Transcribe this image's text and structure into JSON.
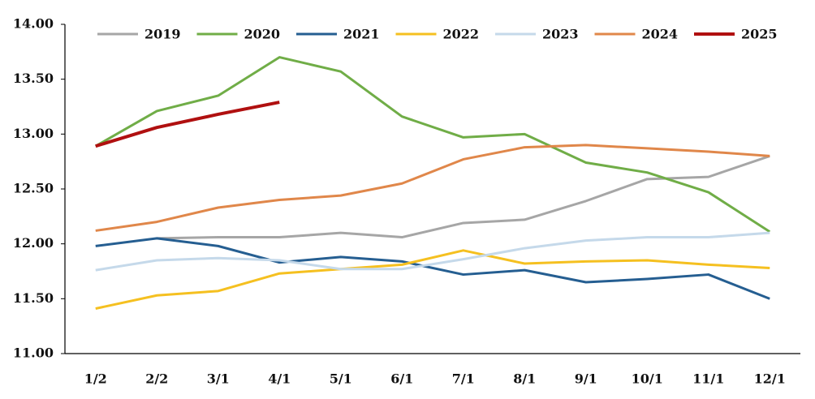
{
  "chart_data": {
    "type": "line",
    "categories": [
      "1/2",
      "2/2",
      "3/1",
      "4/1",
      "5/1",
      "6/1",
      "7/1",
      "8/1",
      "9/1",
      "10/1",
      "11/1",
      "12/1"
    ],
    "series": [
      {
        "name": "2019",
        "color": "#a6a6a6",
        "values": [
          null,
          12.05,
          12.06,
          12.06,
          12.1,
          12.06,
          12.19,
          12.22,
          12.39,
          12.59,
          12.61,
          12.8
        ]
      },
      {
        "name": "2020",
        "color": "#70ad47",
        "values": [
          12.89,
          13.21,
          13.35,
          13.7,
          13.57,
          13.16,
          12.97,
          13.0,
          12.74,
          12.65,
          12.47,
          12.11
        ]
      },
      {
        "name": "2021",
        "color": "#255e91",
        "values": [
          11.98,
          12.05,
          11.98,
          11.83,
          11.88,
          11.84,
          11.72,
          11.76,
          11.65,
          11.68,
          11.72,
          11.5
        ]
      },
      {
        "name": "2022",
        "color": "#f5c020",
        "values": [
          11.41,
          11.53,
          11.57,
          11.73,
          11.77,
          11.81,
          11.94,
          11.82,
          11.84,
          11.85,
          11.81,
          11.78
        ]
      },
      {
        "name": "2023",
        "color": "#c5d9ea",
        "values": [
          11.76,
          11.85,
          11.87,
          11.85,
          11.77,
          11.77,
          11.86,
          11.96,
          12.03,
          12.06,
          12.06,
          12.1
        ]
      },
      {
        "name": "2024",
        "color": "#e0874a",
        "values": [
          12.12,
          12.2,
          12.33,
          12.4,
          12.44,
          12.55,
          12.77,
          12.88,
          12.9,
          12.87,
          12.84,
          12.8
        ]
      },
      {
        "name": "2025",
        "color": "#b01010",
        "values": [
          12.89,
          13.06,
          13.18,
          13.29,
          null,
          null,
          null,
          null,
          null,
          null,
          null,
          null
        ]
      }
    ],
    "ylim": [
      11,
      14
    ],
    "yticks": [
      {
        "value": 11,
        "label": "11.00"
      },
      {
        "value": 11.5,
        "label": "11.50"
      },
      {
        "value": 12,
        "label": "12.00"
      },
      {
        "value": 12.5,
        "label": "12.50"
      },
      {
        "value": 13,
        "label": "13.00"
      },
      {
        "value": 13.5,
        "label": "13.50"
      },
      {
        "value": 14,
        "label": "14.00"
      }
    ],
    "grid": false,
    "legend": "top"
  }
}
